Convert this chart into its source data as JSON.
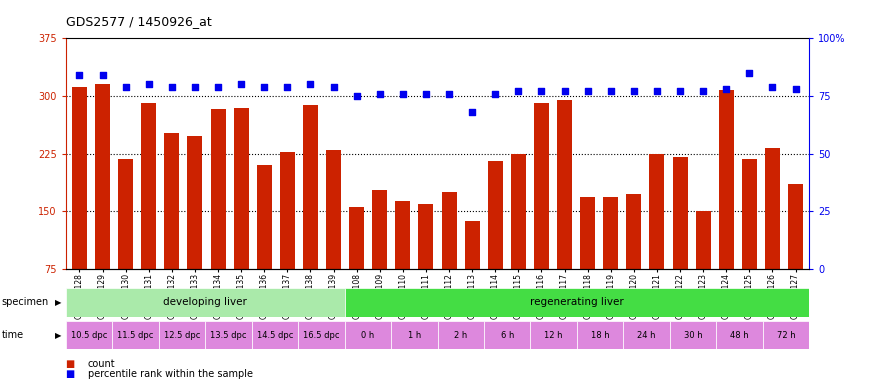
{
  "title": "GDS2577 / 1450926_at",
  "samples": [
    "GSM161128",
    "GSM161129",
    "GSM161130",
    "GSM161131",
    "GSM161132",
    "GSM161133",
    "GSM161134",
    "GSM161135",
    "GSM161136",
    "GSM161137",
    "GSM161138",
    "GSM161139",
    "GSM161108",
    "GSM161109",
    "GSM161110",
    "GSM161111",
    "GSM161112",
    "GSM161113",
    "GSM161114",
    "GSM161115",
    "GSM161116",
    "GSM161117",
    "GSM161118",
    "GSM161119",
    "GSM161120",
    "GSM161121",
    "GSM161122",
    "GSM161123",
    "GSM161124",
    "GSM161125",
    "GSM161126",
    "GSM161127"
  ],
  "counts": [
    312,
    316,
    218,
    291,
    252,
    248,
    283,
    285,
    210,
    227,
    288,
    230,
    155,
    178,
    163,
    160,
    175,
    137,
    215,
    224,
    291,
    295,
    168,
    168,
    172,
    225,
    220,
    150,
    308,
    218,
    232,
    185
  ],
  "percentiles": [
    84,
    84,
    79,
    80,
    79,
    79,
    79,
    80,
    79,
    79,
    80,
    79,
    75,
    76,
    76,
    76,
    76,
    68,
    76,
    77,
    77,
    77,
    77,
    77,
    77,
    77,
    77,
    77,
    78,
    85,
    79,
    78
  ],
  "bar_color": "#cc2200",
  "dot_color": "#0000ee",
  "ylim_left": [
    75,
    375
  ],
  "yticks_left": [
    75,
    150,
    225,
    300,
    375
  ],
  "ylim_right": [
    0,
    100
  ],
  "yticks_right": [
    0,
    25,
    50,
    75,
    100
  ],
  "hlines": [
    150,
    225,
    300
  ],
  "specimen_groups": [
    {
      "label": "developing liver",
      "start": 0,
      "end": 12,
      "color": "#aaeaaa"
    },
    {
      "label": "regenerating liver",
      "start": 12,
      "end": 32,
      "color": "#44dd44"
    }
  ],
  "time_groups": [
    {
      "label": "10.5 dpc",
      "start": 0,
      "end": 2
    },
    {
      "label": "11.5 dpc",
      "start": 2,
      "end": 4
    },
    {
      "label": "12.5 dpc",
      "start": 4,
      "end": 6
    },
    {
      "label": "13.5 dpc",
      "start": 6,
      "end": 8
    },
    {
      "label": "14.5 dpc",
      "start": 8,
      "end": 10
    },
    {
      "label": "16.5 dpc",
      "start": 10,
      "end": 12
    },
    {
      "label": "0 h",
      "start": 12,
      "end": 14
    },
    {
      "label": "1 h",
      "start": 14,
      "end": 16
    },
    {
      "label": "2 h",
      "start": 16,
      "end": 18
    },
    {
      "label": "6 h",
      "start": 18,
      "end": 20
    },
    {
      "label": "12 h",
      "start": 20,
      "end": 22
    },
    {
      "label": "18 h",
      "start": 22,
      "end": 24
    },
    {
      "label": "24 h",
      "start": 24,
      "end": 26
    },
    {
      "label": "30 h",
      "start": 26,
      "end": 28
    },
    {
      "label": "48 h",
      "start": 28,
      "end": 30
    },
    {
      "label": "72 h",
      "start": 30,
      "end": 32
    }
  ],
  "time_color": "#dd88dd",
  "bg_color": "#ffffff",
  "left_axis_color": "#cc2200",
  "right_axis_color": "#0000ee"
}
